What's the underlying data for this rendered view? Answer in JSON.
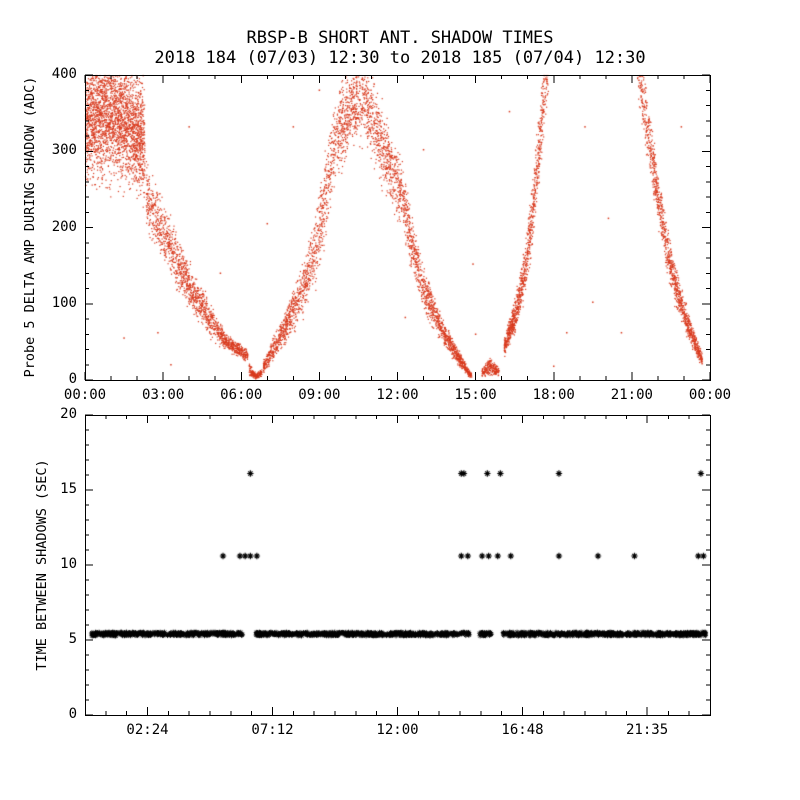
{
  "title": "RBSP-B SHORT ANT. SHADOW TIMES",
  "subtitle": "2018 184 (07/03) 12:30 to 2018 185 (07/04) 12:30",
  "colors": {
    "background": "#ffffff",
    "axis": "#000000",
    "top_points": "#d8391d",
    "bottom_points": "#000000"
  },
  "chart_data": [
    {
      "type": "scatter",
      "panel": "top",
      "marker": "dot",
      "color": "#d8391d",
      "ylabel": "Probe 5 DELTA AMP DURING SHADOW (ADC)",
      "ylim": [
        0,
        400
      ],
      "yticks": [
        0,
        100,
        200,
        300,
        400
      ],
      "y_minor_step": 20,
      "xlim": [
        0,
        24
      ],
      "xticks": [
        {
          "h": 0,
          "label": "00:00"
        },
        {
          "h": 3,
          "label": "03:00"
        },
        {
          "h": 6,
          "label": "06:00"
        },
        {
          "h": 9,
          "label": "09:00"
        },
        {
          "h": 12,
          "label": "12:00"
        },
        {
          "h": 15,
          "label": "15:00"
        },
        {
          "h": 18,
          "label": "18:00"
        },
        {
          "h": 21,
          "label": "21:00"
        },
        {
          "h": 24,
          "label": "00:00"
        }
      ],
      "x_minor_step": 1,
      "description": "Red point cloud of probe-5 delta amplitude during shadows: dense lobe 250-400 ADC from 00:00-02:30 descending to ~40 by 05:45, near 0 at 06:30, broad peak rising to ~400 ADC between 09:45-11:00 then falling to ~0 at 14:45, small cluster near 0 around 15:30, steep narrow rise off the top of scale near 17:30, and a final descending branch from ~400 at 21:20 down to ~25 by 23:40.",
      "envelope_segments": [
        {
          "n": 2600,
          "points": [
            [
              0.0,
              345,
              85
            ],
            [
              0.8,
              350,
              80
            ],
            [
              1.6,
              340,
              80
            ],
            [
              2.3,
              315,
              75
            ]
          ]
        },
        {
          "n": 1400,
          "points": [
            [
              2.35,
              245,
              45
            ],
            [
              3.0,
              195,
              38
            ],
            [
              3.6,
              150,
              32
            ],
            [
              4.2,
              112,
              26
            ],
            [
              4.8,
              78,
              20
            ],
            [
              5.4,
              50,
              12
            ],
            [
              5.9,
              40,
              9
            ],
            [
              6.25,
              32,
              8
            ]
          ]
        },
        {
          "n": 160,
          "points": [
            [
              6.3,
              14,
              8
            ],
            [
              6.55,
              5,
              4
            ],
            [
              6.8,
              10,
              6
            ]
          ]
        },
        {
          "n": 3200,
          "points": [
            [
              6.85,
              16,
              8
            ],
            [
              7.3,
              45,
              16
            ],
            [
              7.8,
              76,
              22
            ],
            [
              8.3,
              112,
              30
            ],
            [
              8.8,
              162,
              42
            ],
            [
              9.2,
              235,
              52
            ],
            [
              9.5,
              292,
              55
            ],
            [
              9.9,
              338,
              55
            ],
            [
              10.3,
              362,
              52
            ],
            [
              10.7,
              368,
              48
            ],
            [
              11.1,
              338,
              50
            ],
            [
              11.5,
              300,
              46
            ],
            [
              11.9,
              262,
              46
            ],
            [
              12.15,
              250,
              42
            ],
            [
              12.5,
              188,
              36
            ],
            [
              12.9,
              130,
              30
            ],
            [
              13.4,
              88,
              22
            ],
            [
              13.9,
              54,
              15
            ],
            [
              14.3,
              32,
              10
            ],
            [
              14.65,
              13,
              7
            ],
            [
              14.85,
              5,
              3
            ]
          ]
        },
        {
          "n": 220,
          "points": [
            [
              15.25,
              10,
              7
            ],
            [
              15.55,
              18,
              10
            ],
            [
              15.9,
              10,
              6
            ]
          ]
        },
        {
          "n": 1000,
          "points": [
            [
              16.1,
              42,
              13
            ],
            [
              16.5,
              82,
              20
            ],
            [
              16.9,
              142,
              30
            ],
            [
              17.2,
              222,
              42
            ],
            [
              17.45,
              310,
              50
            ],
            [
              17.65,
              390,
              48
            ],
            [
              17.8,
              425,
              40
            ]
          ]
        },
        {
          "n": 1200,
          "points": [
            [
              21.2,
              425,
              40
            ],
            [
              21.4,
              380,
              45
            ],
            [
              21.7,
              308,
              40
            ],
            [
              22.0,
              240,
              35
            ],
            [
              22.3,
              180,
              30
            ],
            [
              22.7,
              120,
              24
            ],
            [
              23.1,
              78,
              18
            ],
            [
              23.45,
              46,
              12
            ],
            [
              23.7,
              26,
              8
            ]
          ]
        }
      ],
      "sparse_points": [
        [
          1.5,
          55
        ],
        [
          2.8,
          62
        ],
        [
          3.3,
          20
        ],
        [
          4.0,
          332
        ],
        [
          5.2,
          140
        ],
        [
          7.0,
          205
        ],
        [
          8.0,
          332
        ],
        [
          9.0,
          380
        ],
        [
          12.3,
          82
        ],
        [
          13.0,
          302
        ],
        [
          14.9,
          152
        ],
        [
          15.0,
          60
        ],
        [
          16.3,
          352
        ],
        [
          18.0,
          18
        ],
        [
          18.5,
          62
        ],
        [
          19.2,
          332
        ],
        [
          19.5,
          102
        ],
        [
          20.1,
          212
        ],
        [
          20.6,
          62
        ],
        [
          22.9,
          332
        ]
      ]
    },
    {
      "type": "scatter",
      "panel": "bottom",
      "marker": "asterisk",
      "color": "#000000",
      "ylabel": "TIME BETWEEN SHADOWS (SEC)",
      "ylim": [
        0,
        20
      ],
      "yticks": [
        0,
        5,
        10,
        15,
        20
      ],
      "y_minor_step": 1,
      "xlim": [
        0,
        24
      ],
      "xticks": [
        {
          "h": 2.4,
          "label": "02:24"
        },
        {
          "h": 7.2,
          "label": "07:12"
        },
        {
          "h": 12.0,
          "label": "12:00"
        },
        {
          "h": 16.8,
          "label": "16:48"
        },
        {
          "h": 21.5833,
          "label": "21:35"
        }
      ],
      "x_minor_step": 0.8,
      "description": "Black asterisks: dense continuous band at ~5.4 s between shadows across the day with gaps near 06:15, 14:50 and 15:40; isolated points at ~10.6 s and ~16.1 s.",
      "band": {
        "y": 5.4,
        "jitter": 0.12,
        "density_per_hour": 60,
        "segments": [
          [
            0.25,
            6.05
          ],
          [
            6.55,
            14.75
          ],
          [
            15.15,
            15.6
          ],
          [
            16.05,
            23.85
          ]
        ]
      },
      "mid_row": {
        "y": 10.6,
        "t": [
          5.3,
          5.95,
          6.15,
          6.35,
          6.6,
          14.45,
          14.7,
          15.25,
          15.5,
          15.85,
          16.35,
          18.2,
          19.7,
          21.1,
          23.55,
          23.75
        ]
      },
      "high_row": {
        "y": 16.1,
        "t": [
          6.35,
          14.45,
          14.55,
          15.45,
          15.95,
          18.2,
          23.65
        ]
      }
    }
  ]
}
